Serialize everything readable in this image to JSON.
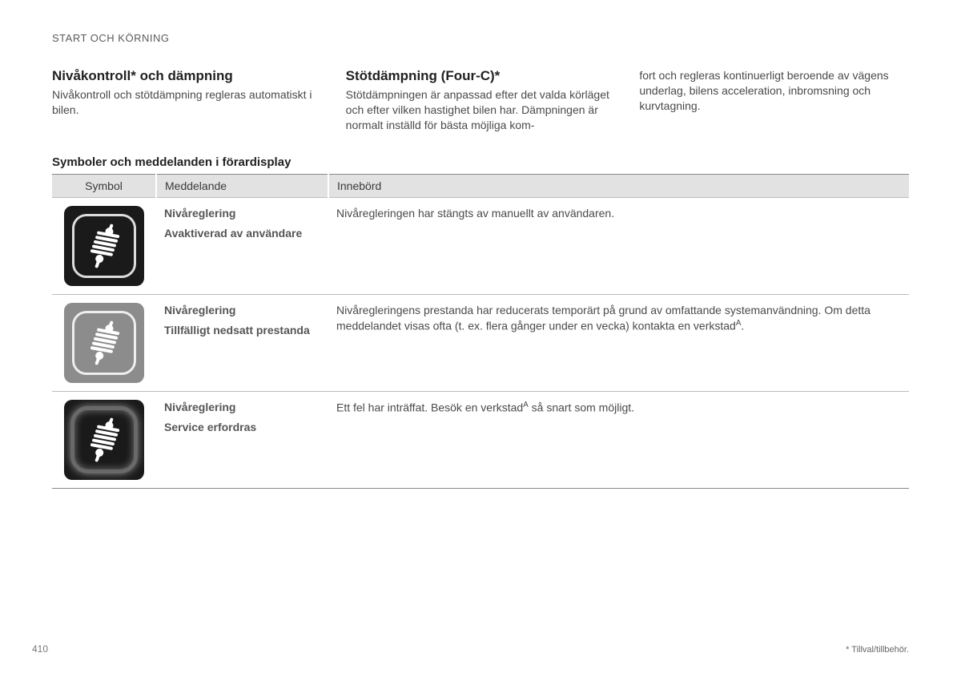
{
  "header": "START OCH KÖRNING",
  "col1": {
    "title": "Nivåkontroll* och dämpning",
    "body": "Nivåkontroll och stötdämpning regleras automatiskt i bilen."
  },
  "col2": {
    "title": "Stötdämpning (Four-C)*",
    "body": "Stötdämpningen är anpassad efter det valda körläget och efter vilken hastighet bilen har. Dämpningen är normalt inställd för bästa möjliga kom-"
  },
  "col3": {
    "body": "fort och regleras kontinuerligt beroende av vägens underlag, bilens acceleration, inbromsning och kurvtagning."
  },
  "tableTitle": "Symboler och meddelanden i förardisplay",
  "table": {
    "headers": [
      "Symbol",
      "Meddelande",
      "Innebörd"
    ],
    "rows": [
      {
        "iconVariant": "black-border",
        "msgTitle": "Nivåreglering",
        "msgSub": "Avaktiverad av användare",
        "meaning": "Nivåregleringen har stängts av manuellt av användaren.",
        "sup": ""
      },
      {
        "iconVariant": "gray-border",
        "msgTitle": "Nivåreglering",
        "msgSub": "Tillfälligt nedsatt prestanda",
        "meaningPre": "Nivåregleringens prestanda har reducerats temporärt på grund av omfattande systemanvändning. Om detta meddelandet visas ofta (t. ex. flera gånger under en vecka) kontakta en verkstad",
        "sup": "A",
        "meaningPost": "."
      },
      {
        "iconVariant": "black-glow",
        "msgTitle": "Nivåreglering",
        "msgSub": "Service erfordras",
        "meaningPre": "Ett fel har inträffat. Besök en verkstad",
        "sup": "A",
        "meaningPost": " så snart som möjligt."
      }
    ]
  },
  "pageNumber": "410",
  "footnote": "* Tillval/tillbehör.",
  "colors": {
    "iconBlack": "#1a1a1a",
    "iconGray": "#8c8c8c",
    "springStroke": "#ffffff",
    "headerBg": "#e2e2e2",
    "ruleColor": "#888888"
  }
}
